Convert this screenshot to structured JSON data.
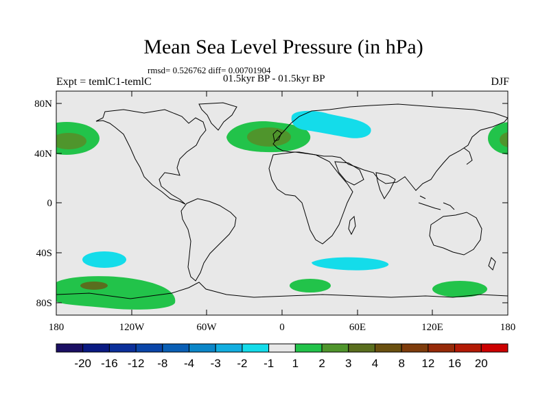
{
  "map": {
    "title": "Mean Sea Level Pressure (in hPa)",
    "stats": "rmsd= 0.526762 diff= 0.00701904",
    "period": "01.5kyr BP - 01.5kyr BP",
    "experiment": "Expt = temlC1-temlC",
    "season": "DJF",
    "y_ticks": [
      "80N",
      "40N",
      "0",
      "40S",
      "80S"
    ],
    "x_ticks": [
      "180",
      "120W",
      "60W",
      "0",
      "60E",
      "120E",
      "180"
    ],
    "colors": {
      "background": "#e8e8e8",
      "land_line": "#000000"
    }
  },
  "colorbar": {
    "colors": [
      "#1b0f63",
      "#0a1a82",
      "#0b2f9a",
      "#0a45a8",
      "#0a5fb5",
      "#0b86c8",
      "#12aee0",
      "#14dcea",
      "#e8e8e8",
      "#22c34a",
      "#4f952c",
      "#5a6e1e",
      "#6a5010",
      "#7e3c0c",
      "#962a08",
      "#b31a05",
      "#cc0000"
    ],
    "labels": [
      "-20",
      "-16",
      "-12",
      "-8",
      "-4",
      "-3",
      "-2",
      "-1",
      "1",
      "2",
      "3",
      "4",
      "8",
      "12",
      "16",
      "20"
    ]
  },
  "anomalies": [
    {
      "name": "north-pacific-west-high",
      "level": "3"
    },
    {
      "name": "north-pacific-east-high",
      "level": "3"
    },
    {
      "name": "north-atlantic-high",
      "level": "3"
    },
    {
      "name": "scandinavia-low",
      "level": "-1"
    },
    {
      "name": "south-pacific-low",
      "level": "-1"
    },
    {
      "name": "south-indian-ocean-low",
      "level": "-1"
    },
    {
      "name": "southern-ocean-pacific-high",
      "level": "3"
    },
    {
      "name": "southern-ocean-atlantic-high",
      "level": "2"
    },
    {
      "name": "southern-ocean-australia-high",
      "level": "2"
    }
  ]
}
